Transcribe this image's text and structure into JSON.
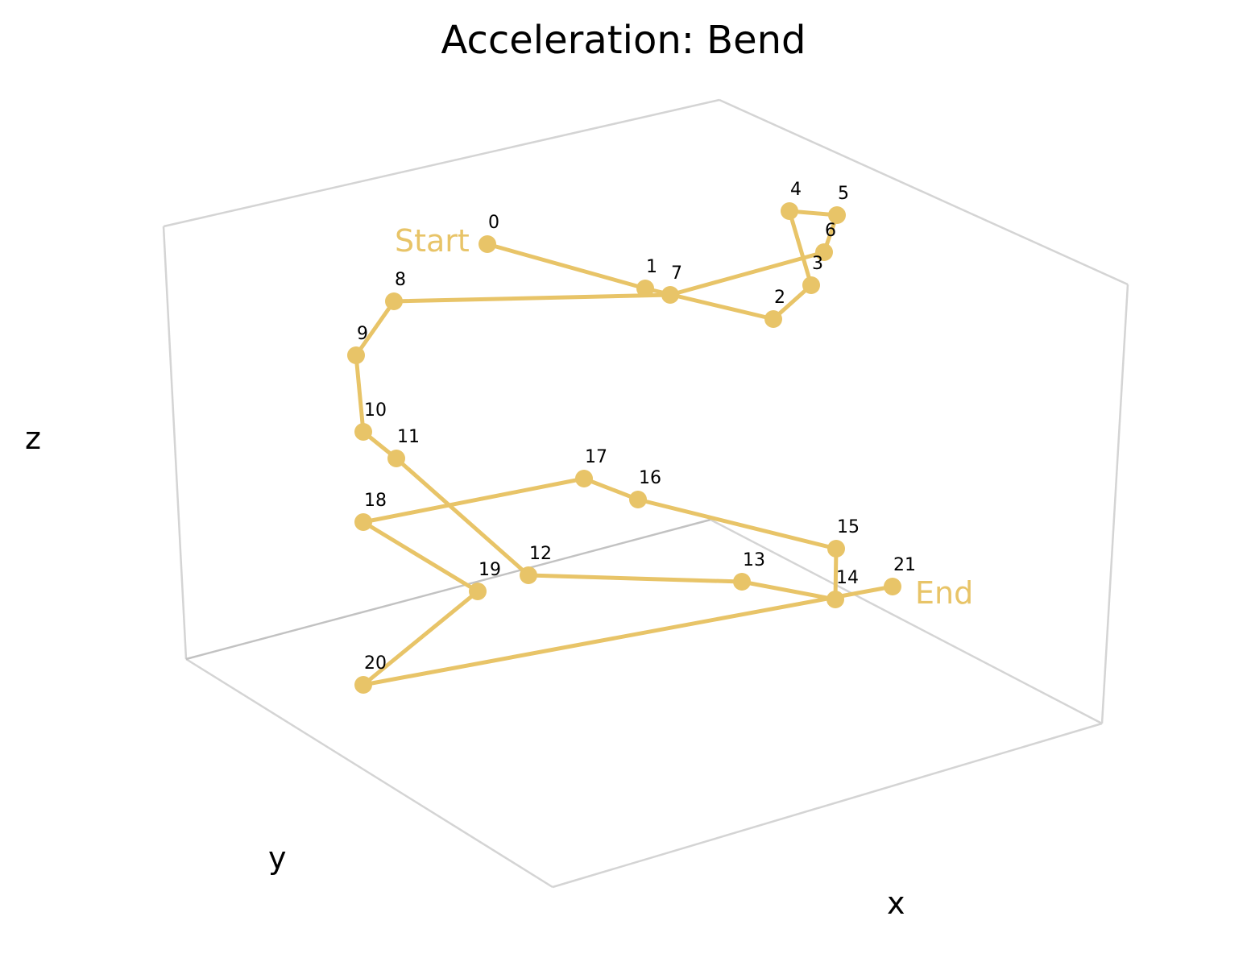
{
  "chart_data": {
    "type": "line",
    "projection": "3d",
    "title": "Acceleration: Bend",
    "xlabel": "x",
    "ylabel": "y",
    "zlabel": "z",
    "grid": false,
    "series_color": "#e8c468",
    "start_label": "Start",
    "end_label": "End",
    "point_labels": [
      "0",
      "1",
      "2",
      "3",
      "4",
      "5",
      "6",
      "7",
      "8",
      "9",
      "10",
      "11",
      "12",
      "13",
      "14",
      "15",
      "16",
      "17",
      "18",
      "19",
      "20",
      "21"
    ]
  }
}
